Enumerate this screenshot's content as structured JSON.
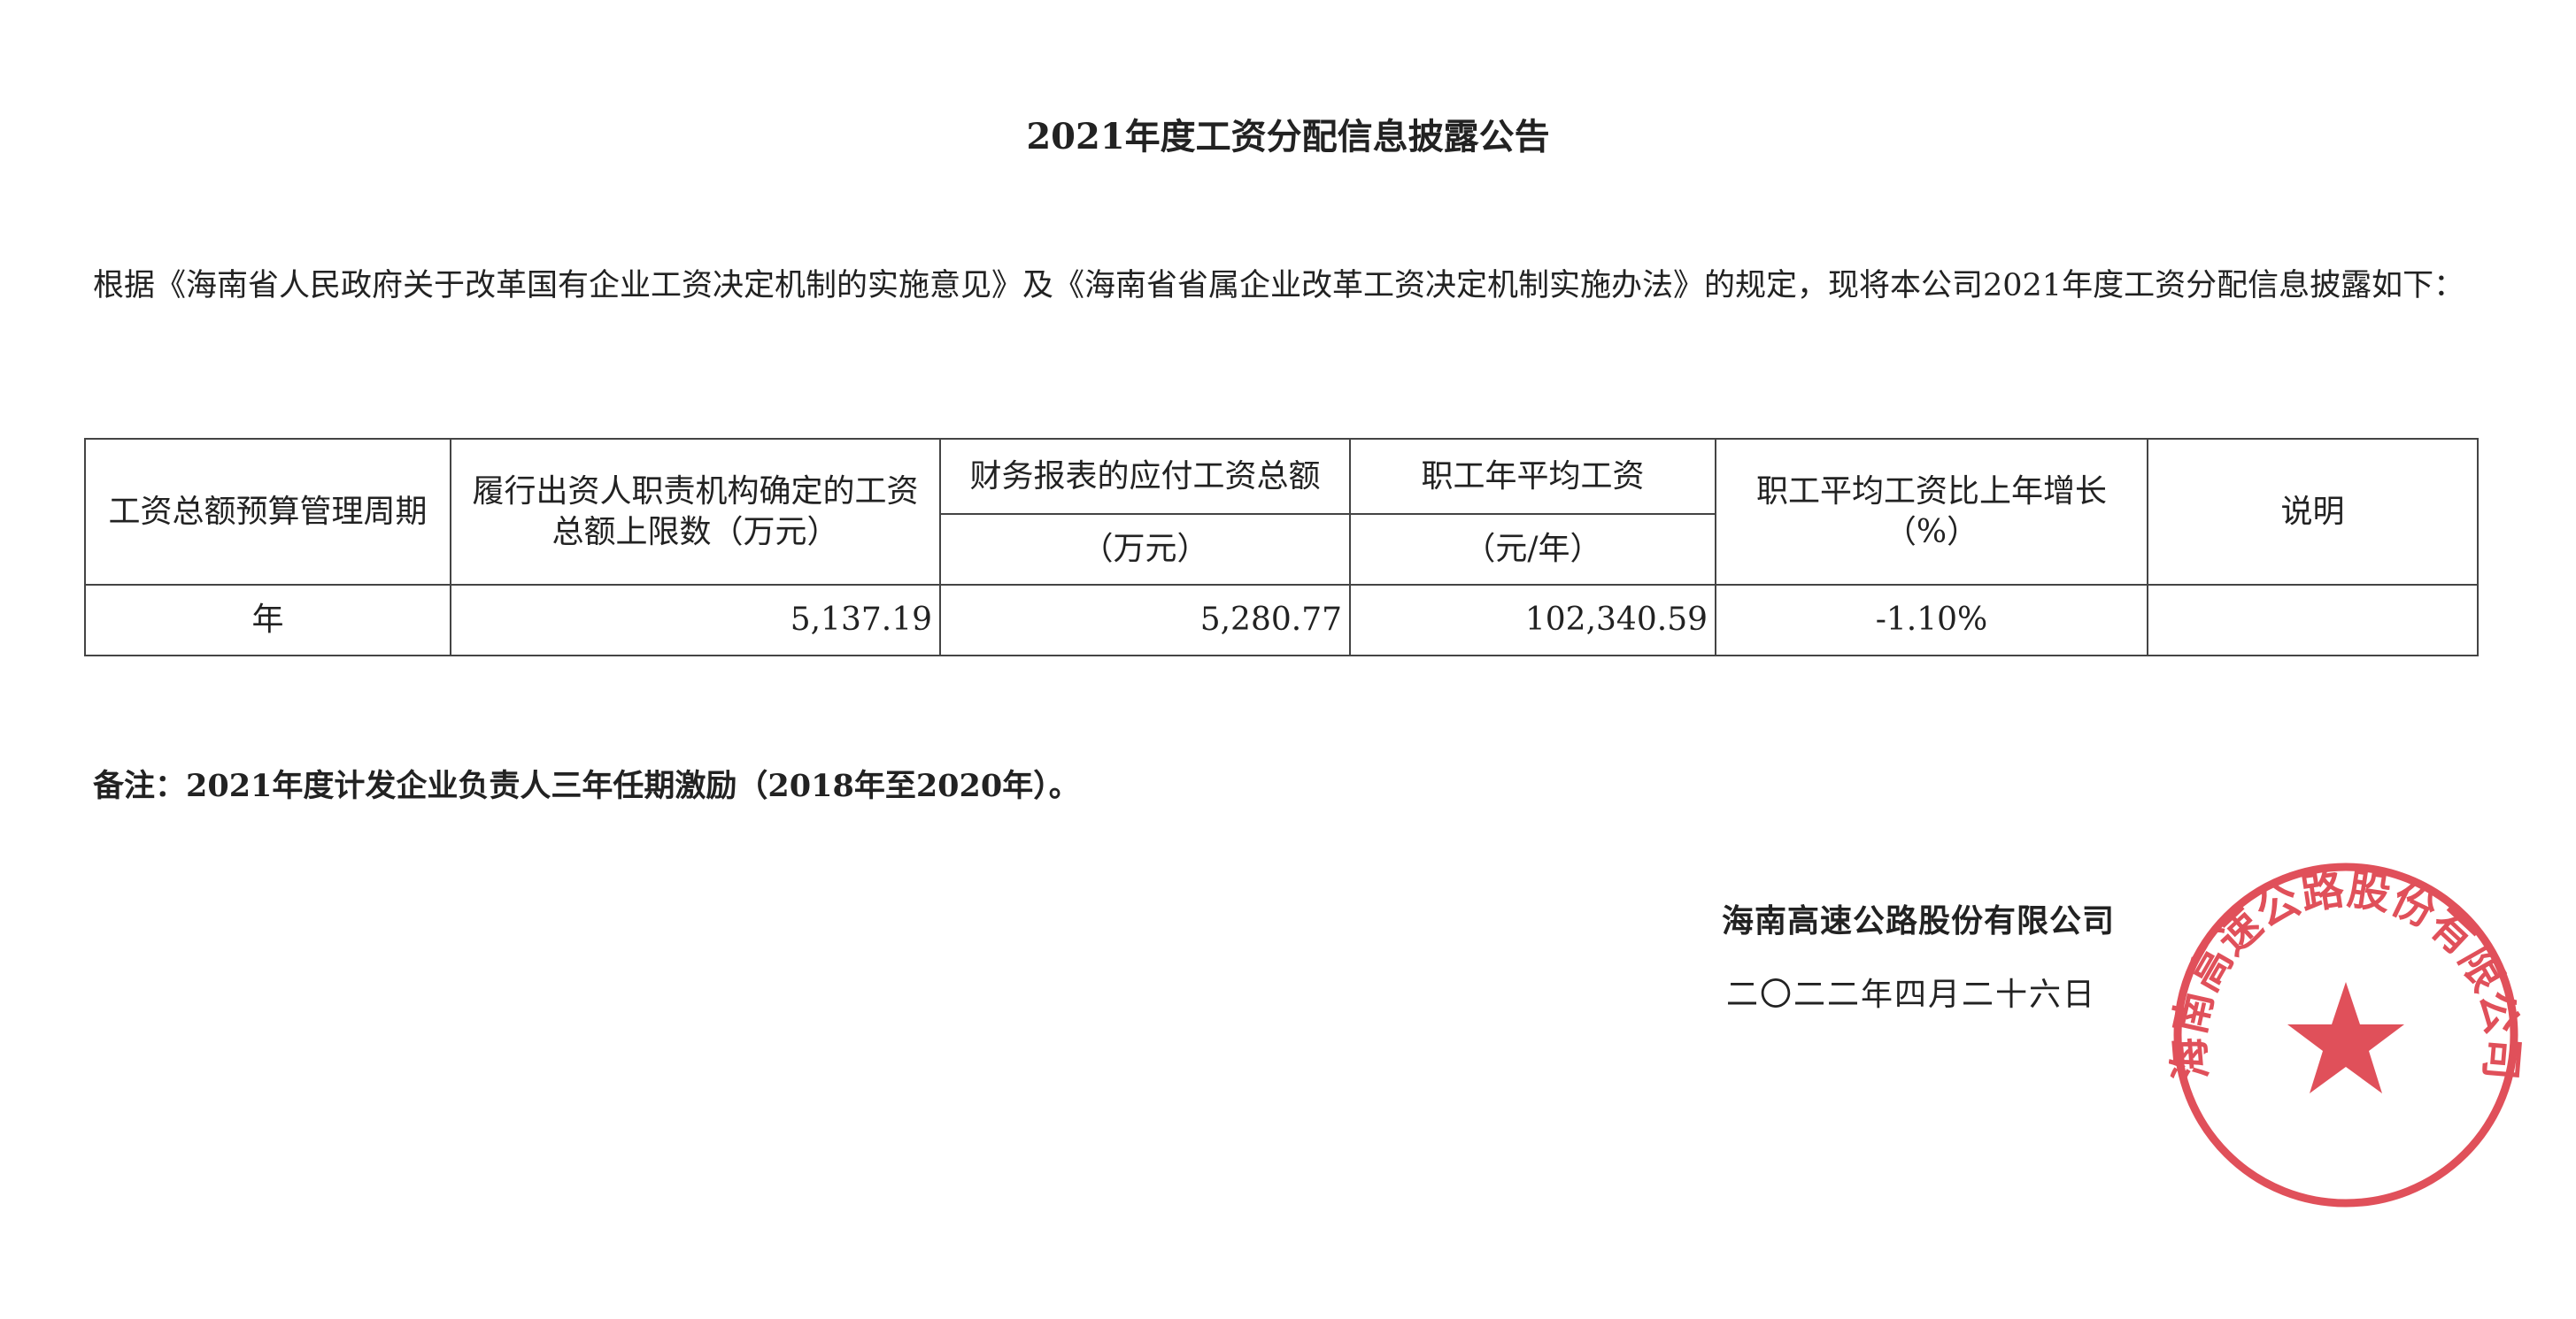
{
  "title": "2021年度工资分配信息披露公告",
  "intro": "根据《海南省人民政府关于改革国有企业工资决定机制的实施意见》及《海南省省属企业改革工资决定机制实施办法》的规定，现将本公司2021年度工资分配信息披露如下：",
  "table": {
    "headers": {
      "period": "工资总额预算管理周期",
      "limit": "履行出资人职责机构确定的工资总额上限数（万元）",
      "payable": "财务报表的应付工资总额",
      "payable_unit": "（万元）",
      "avg_wage": "职工年平均工资",
      "avg_wage_unit": "（元/年）",
      "growth": "职工平均工资比上年增长（%）",
      "remark": "说明"
    },
    "rows": [
      {
        "period": "年",
        "limit": "5,137.19",
        "payable": "5,280.77",
        "avg_wage": "102,340.59",
        "growth": "-1.10%",
        "remark": ""
      }
    ]
  },
  "note": "备注：2021年度计发企业负责人三年任期激励（2018年至2020年）。",
  "signature": {
    "company": "海南高速公路股份有限公司",
    "date": "二〇二二年四月二十六日",
    "stamp_text": "海南高速公路股份有限公司",
    "stamp_color": "#e0505a"
  }
}
